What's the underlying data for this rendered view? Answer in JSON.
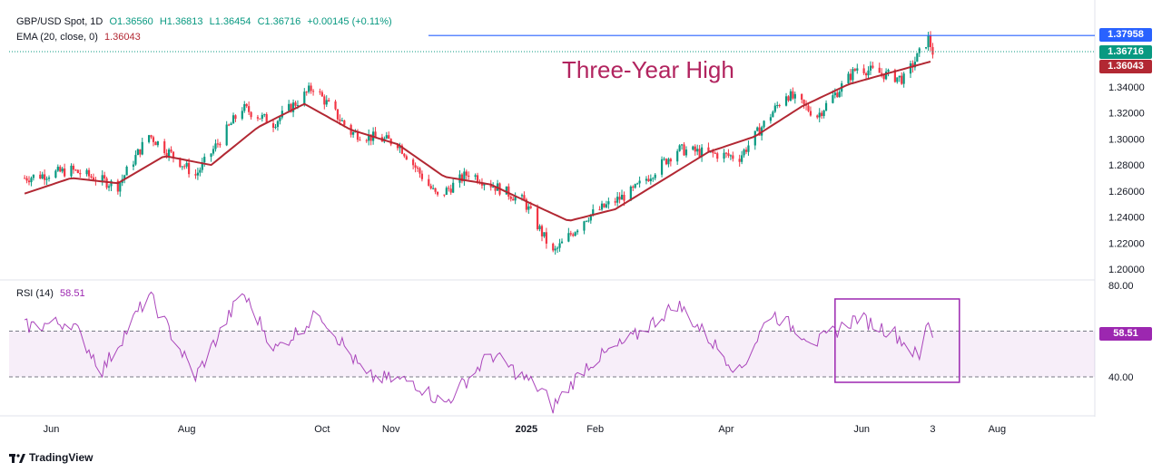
{
  "header": {
    "symbol": "GBP/USD Spot, 1D",
    "open": "O1.36560",
    "high": "H1.36813",
    "low": "L1.36454",
    "close": "C1.36716",
    "change": "+0.00145 (+0.11%)",
    "ema_label": "EMA (20, close, 0)",
    "ema_value": "1.36043",
    "rsi_label": "RSI (14)",
    "rsi_value": "58.51"
  },
  "annotation": "Three-Year High",
  "price_tags": {
    "resistance": "1.37958",
    "last": "1.36716",
    "ema": "1.36043"
  },
  "rsi_tag": "58.51",
  "branding": "TradingView",
  "colors": {
    "up": "#089981",
    "down": "#f23645",
    "ema": "#b22833",
    "rsi": "#9c27b0",
    "resistance": "#2962ff",
    "annotation": "#b2245f"
  },
  "chart_data": [
    {
      "type": "candlestick",
      "title": "GBP/USD Spot, 1D",
      "x_ticks": [
        "Jun",
        "Aug",
        "Oct",
        "Nov",
        "2025",
        "Feb",
        "Apr",
        "Jun",
        "3",
        "Aug"
      ],
      "y_ticks": [
        "1.20000",
        "1.22000",
        "1.24000",
        "1.26000",
        "1.28000",
        "1.30000",
        "1.32000",
        "1.34000"
      ],
      "ylim": [
        1.195,
        1.385
      ],
      "resistance": 1.37958,
      "last_close": 1.36716,
      "series": [
        {
          "name": "EMA (20, close, 0)",
          "x": [
            "2024-05-20",
            "2024-06-10",
            "2024-07-01",
            "2024-07-22",
            "2024-08-12",
            "2024-09-02",
            "2024-09-23",
            "2024-10-14",
            "2024-11-04",
            "2024-11-25",
            "2024-12-16",
            "2025-01-06",
            "2025-01-20",
            "2025-02-10",
            "2025-03-03",
            "2025-03-24",
            "2025-04-14",
            "2025-05-05",
            "2025-05-26",
            "2025-06-16",
            "2025-07-03"
          ],
          "values": [
            1.258,
            1.27,
            1.266,
            1.287,
            1.28,
            1.309,
            1.327,
            1.307,
            1.296,
            1.271,
            1.265,
            1.248,
            1.237,
            1.246,
            1.268,
            1.29,
            1.302,
            1.325,
            1.342,
            1.352,
            1.36
          ]
        },
        {
          "name": "Close",
          "x": [
            "2024-05-20",
            "2024-06-10",
            "2024-07-01",
            "2024-07-15",
            "2024-08-05",
            "2024-08-26",
            "2024-09-09",
            "2024-09-27",
            "2024-10-14",
            "2024-11-04",
            "2024-11-22",
            "2024-12-06",
            "2024-12-31",
            "2025-01-13",
            "2025-01-28",
            "2025-02-18",
            "2025-03-10",
            "2025-04-07",
            "2025-04-28",
            "2025-05-12",
            "2025-05-30",
            "2025-06-20",
            "2025-07-01",
            "2025-07-03"
          ],
          "values": [
            1.27,
            1.276,
            1.264,
            1.303,
            1.272,
            1.324,
            1.312,
            1.34,
            1.305,
            1.297,
            1.255,
            1.274,
            1.252,
            1.212,
            1.24,
            1.26,
            1.292,
            1.286,
            1.335,
            1.318,
            1.355,
            1.346,
            1.377,
            1.367
          ]
        }
      ]
    },
    {
      "type": "line",
      "title": "RSI (14)",
      "y_ticks": [
        "80.00",
        "40.00"
      ],
      "ylim": [
        20,
        80
      ],
      "bands": [
        40,
        60
      ],
      "series": [
        {
          "name": "RSI (14)",
          "x": [
            "2024-05-20",
            "2024-06-10",
            "2024-06-24",
            "2024-07-15",
            "2024-08-05",
            "2024-08-26",
            "2024-09-10",
            "2024-09-30",
            "2024-10-21",
            "2024-11-11",
            "2024-11-25",
            "2024-12-16",
            "2025-01-08",
            "2025-01-13",
            "2025-01-28",
            "2025-02-18",
            "2025-03-10",
            "2025-04-07",
            "2025-04-21",
            "2025-05-12",
            "2025-05-30",
            "2025-06-16",
            "2025-06-27",
            "2025-07-01",
            "2025-07-03"
          ],
          "values": [
            62,
            64,
            43,
            76,
            40,
            77,
            52,
            68,
            40,
            38,
            28,
            50,
            34,
            27,
            45,
            57,
            72,
            42,
            68,
            55,
            66,
            59,
            48,
            65,
            58.51
          ]
        }
      ]
    }
  ]
}
